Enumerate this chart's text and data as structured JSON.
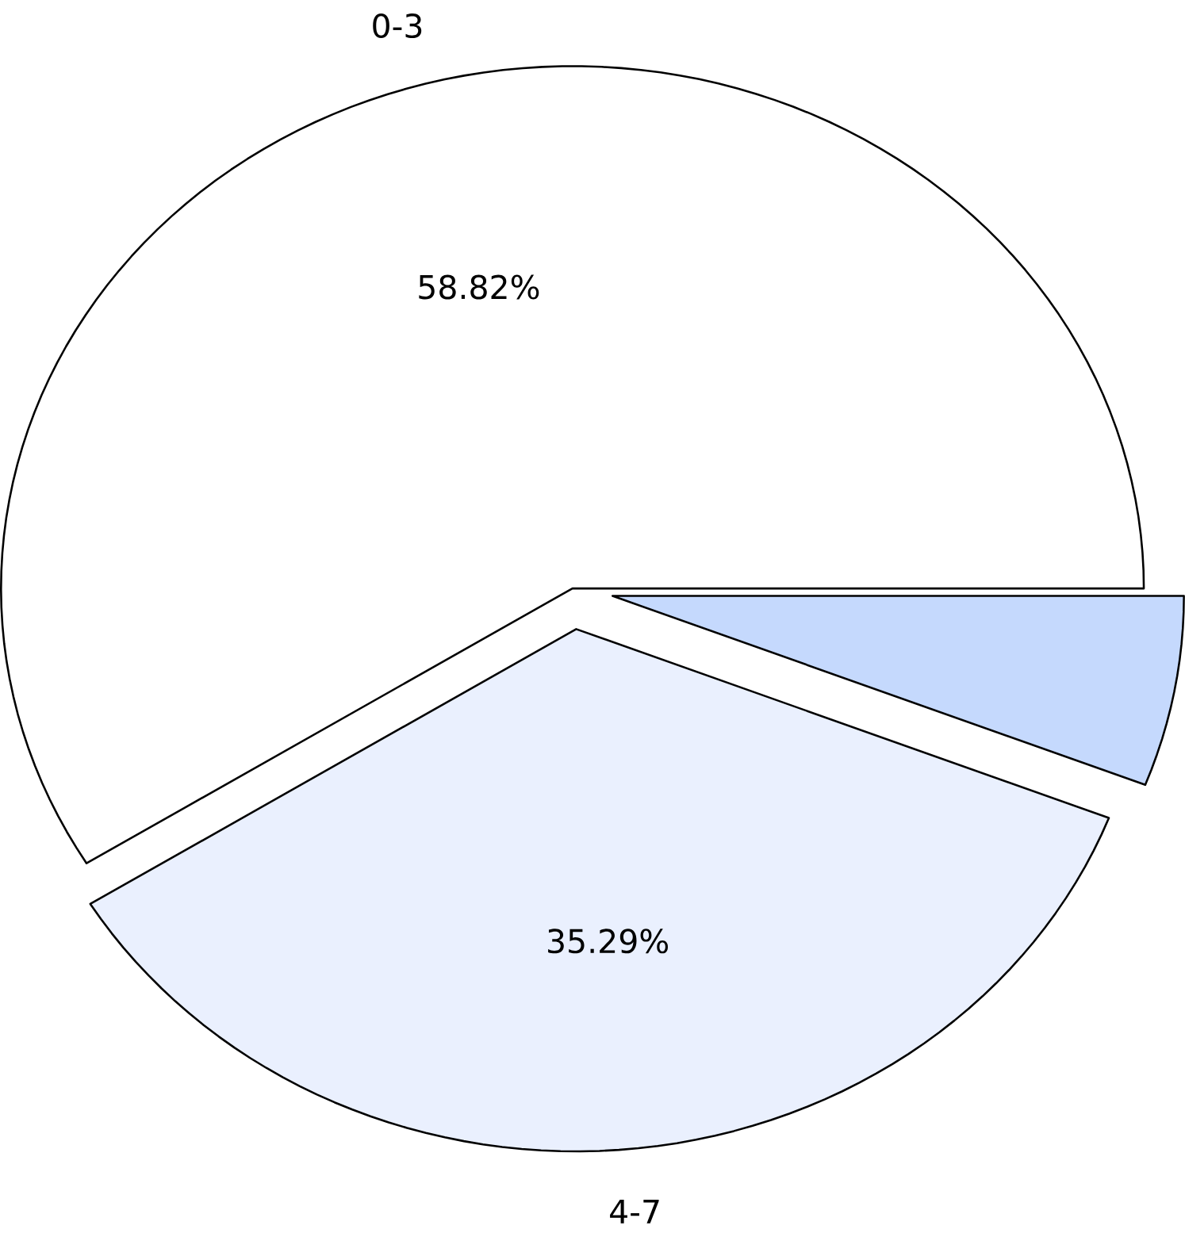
{
  "chart_data": {
    "type": "pie",
    "categories": [
      "0-3",
      "4-7",
      null
    ],
    "values": [
      58.82,
      35.29,
      5.89
    ],
    "colors": [
      "#ffffff",
      "#eaf0fe",
      "#c5d9fd"
    ],
    "value_labels": [
      "58.82%",
      "35.29%",
      null
    ]
  }
}
